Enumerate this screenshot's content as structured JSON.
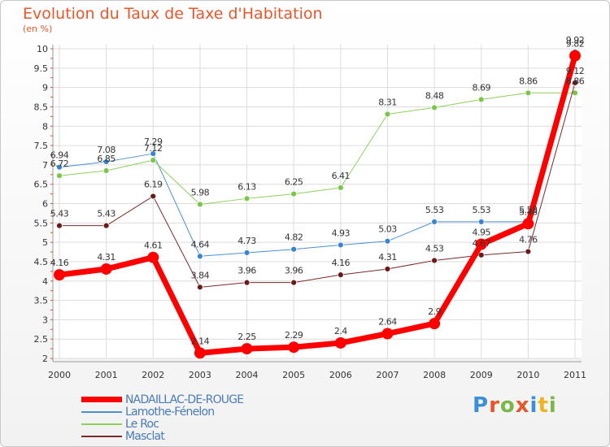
{
  "title": "Evolution du Taux de Taxe d'Habitation",
  "subtitle": "(en %)",
  "logo": {
    "letters": [
      "P",
      "r",
      "o",
      "x",
      "i",
      "t",
      "i"
    ],
    "colors": [
      "#3a8fd8",
      "#e8572b",
      "#7ab648",
      "#e8572b",
      "#3a8fd8",
      "#f0b41c",
      "#7ab648"
    ]
  },
  "chart_data": {
    "type": "line",
    "x": [
      "2000",
      "2001",
      "2002",
      "2003",
      "2004",
      "2005",
      "2006",
      "2007",
      "2008",
      "2009",
      "2010",
      "2011"
    ],
    "ylim": [
      2,
      10
    ],
    "yticks": [
      "2",
      "2.5",
      "3",
      "3.5",
      "4",
      "4.5",
      "5",
      "5.5",
      "6",
      "6.5",
      "7",
      "7.5",
      "8",
      "8.5",
      "9",
      "9.5",
      "10"
    ],
    "grid": true,
    "legend_position": "bottom-left",
    "series": [
      {
        "name": "NADAILLAC-DE-ROUGE",
        "color": "#ff0000",
        "marker": "#ff0000",
        "width": 7,
        "radius": 7,
        "values": [
          4.16,
          4.31,
          4.61,
          2.14,
          2.25,
          2.29,
          2.4,
          2.64,
          2.9,
          4.95,
          5.48,
          9.82
        ],
        "labels": [
          "4.16",
          "4.31",
          "4.61",
          "2.14",
          "2.25",
          "2.29",
          "2.4",
          "2.64",
          "2.9",
          "4.95",
          "5.48",
          "9.82"
        ]
      },
      {
        "name": "Lamothe-Fénelon",
        "color": "#4a90d6",
        "marker": "#3a84d0",
        "width": 1,
        "radius": 3.5,
        "values": [
          6.94,
          7.08,
          7.29,
          4.64,
          4.73,
          4.82,
          4.93,
          5.03,
          5.53,
          5.53,
          5.53,
          9.92
        ],
        "labels": [
          "6.94",
          "7.08",
          "7.29",
          "4.64",
          "4.73",
          "4.82",
          "4.93",
          "5.03",
          "5.53",
          "5.53",
          "5.53",
          "9.92"
        ]
      },
      {
        "name": "Le Roc",
        "color": "#8ed05a",
        "marker": "#7ac64a",
        "width": 1,
        "radius": 3.5,
        "values": [
          6.72,
          6.85,
          7.12,
          5.98,
          6.13,
          6.25,
          6.41,
          8.31,
          8.48,
          8.69,
          8.86,
          8.86
        ],
        "labels": [
          "6.72",
          "6.85",
          "7.12",
          "5.98",
          "6.13",
          "6.25",
          "6.41",
          "8.31",
          "8.48",
          "8.69",
          "8.86",
          "8.86"
        ]
      },
      {
        "name": "Masclat",
        "color": "#7a2a2a",
        "marker": "#6a1a1a",
        "width": 1,
        "radius": 3.5,
        "values": [
          5.43,
          5.43,
          6.19,
          3.84,
          3.96,
          3.96,
          4.16,
          4.31,
          4.53,
          4.67,
          4.76,
          9.12
        ],
        "labels": [
          "5.43",
          "5.43",
          "6.19",
          "3.84",
          "3.96",
          "3.96",
          "4.16",
          "4.31",
          "4.53",
          "4.67",
          "4.76",
          "9.12"
        ]
      }
    ]
  }
}
